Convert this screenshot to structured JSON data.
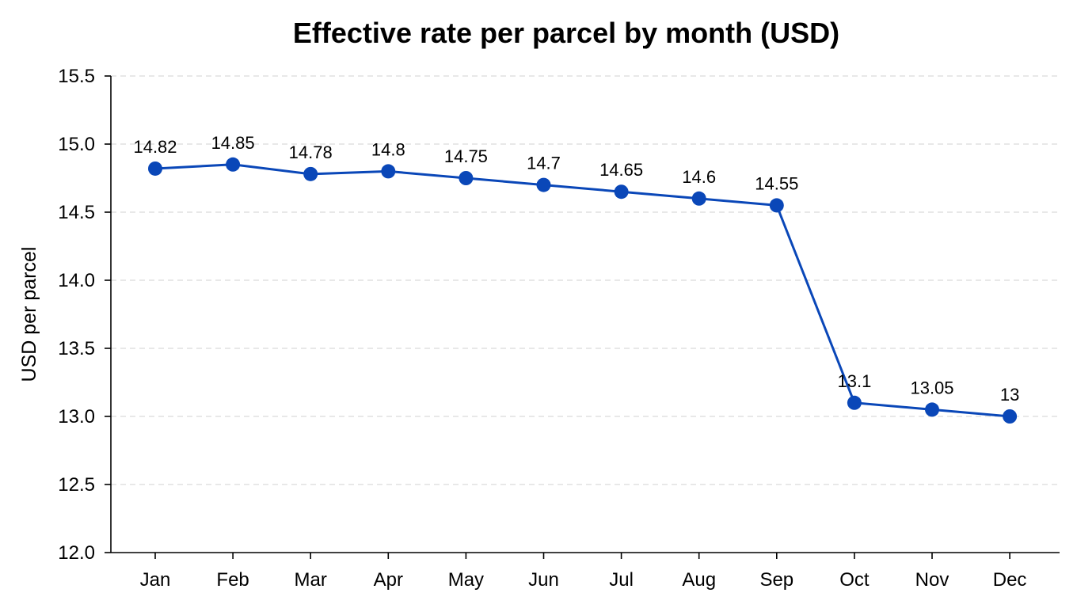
{
  "chart_data": {
    "type": "line",
    "title": "Effective rate per parcel by month (USD)",
    "xlabel": "",
    "ylabel": "USD per parcel",
    "categories": [
      "Jan",
      "Feb",
      "Mar",
      "Apr",
      "May",
      "Jun",
      "Jul",
      "Aug",
      "Sep",
      "Oct",
      "Nov",
      "Dec"
    ],
    "series": [
      {
        "values": [
          14.82,
          14.85,
          14.78,
          14.8,
          14.75,
          14.7,
          14.65,
          14.6,
          14.55,
          13.1,
          13.05,
          13
        ]
      }
    ],
    "data_labels": [
      "14.82",
      "14.85",
      "14.78",
      "14.8",
      "14.75",
      "14.7",
      "14.65",
      "14.6",
      "14.55",
      "13.1",
      "13.05",
      "13"
    ],
    "ylim": [
      12.0,
      15.5
    ],
    "yticks": [
      "12.0",
      "12.5",
      "13.0",
      "13.5",
      "14.0",
      "14.5",
      "15.0",
      "15.5"
    ],
    "grid": "horizontal dashed",
    "legend": "none",
    "colors": {
      "line": "#0a47b8",
      "grid": "#d9d9d9",
      "axis": "#000000"
    }
  }
}
